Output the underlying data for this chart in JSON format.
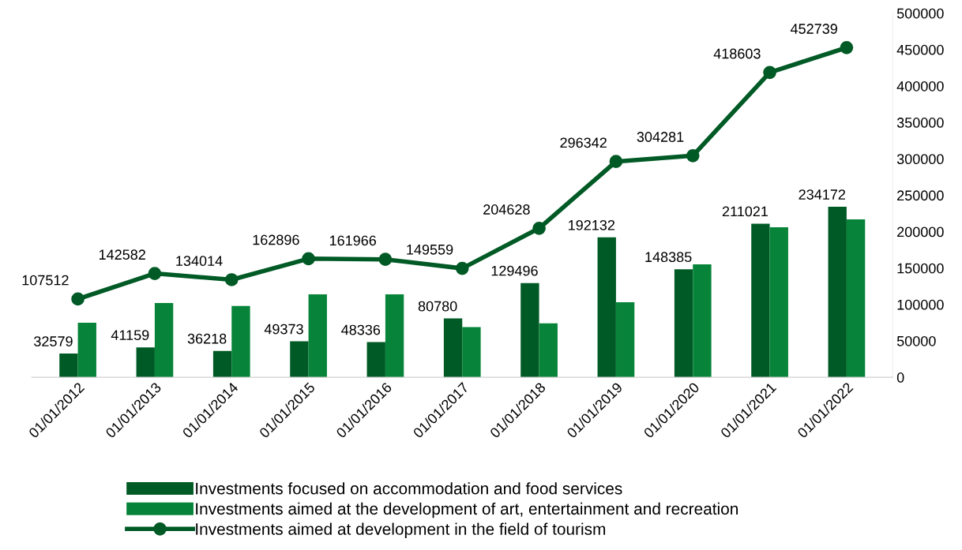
{
  "chart_data": {
    "type": "bar",
    "categories": [
      "01/01/2012",
      "01/01/2013",
      "01/01/2014",
      "01/01/2015",
      "01/01/2016",
      "01/01/2017",
      "01/01/2018",
      "01/01/2019",
      "01/01/2020",
      "01/01/2021",
      "01/01/2022"
    ],
    "series": [
      {
        "name": "Investments focused on accommodation and food services",
        "color": "#005a25",
        "values": [
          32579,
          41159,
          36218,
          49373,
          48336,
          80780,
          129496,
          192132,
          148385,
          211021,
          234172
        ],
        "value_labels": [
          "32579",
          "41159",
          "36218",
          "49373",
          "48336",
          "80780",
          "129496",
          "192132",
          "148385",
          "211021",
          "234172"
        ]
      },
      {
        "name": "Investments aimed at the development of art, entertainment and recreation",
        "color": "#078439",
        "values": [
          75000,
          102000,
          98000,
          114000,
          114000,
          69000,
          74000,
          103000,
          155000,
          206000,
          217000
        ]
      },
      {
        "name": "Investments aimed at development in the field of tourism",
        "type": "line",
        "color": "#005a25",
        "marker": "circle",
        "values": [
          107512,
          142582,
          134014,
          162896,
          161966,
          149559,
          204628,
          296342,
          304281,
          418603,
          452739
        ],
        "value_labels": [
          "107512",
          "142582",
          "134014",
          "162896",
          "161966",
          "149559",
          "204628",
          "296342",
          "304281",
          "418603",
          "452739"
        ]
      }
    ],
    "ylim": [
      0,
      500000
    ],
    "yticks": [
      0,
      50000,
      100000,
      150000,
      200000,
      250000,
      300000,
      350000,
      400000,
      450000,
      500000
    ],
    "grid": false,
    "legend": "bottom"
  }
}
